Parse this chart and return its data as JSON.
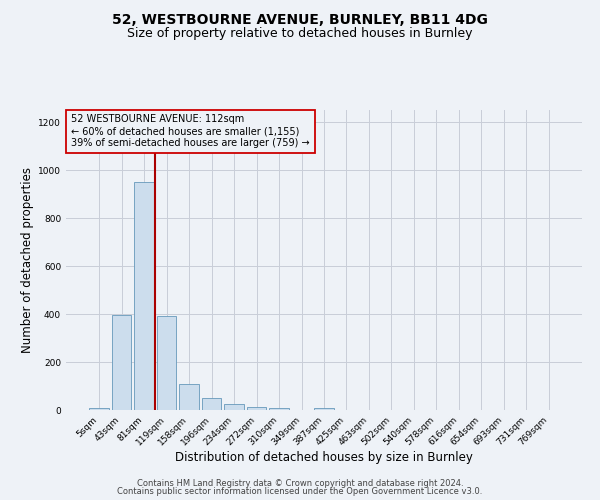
{
  "title_line1": "52, WESTBOURNE AVENUE, BURNLEY, BB11 4DG",
  "title_line2": "Size of property relative to detached houses in Burnley",
  "xlabel": "Distribution of detached houses by size in Burnley",
  "ylabel": "Number of detached properties",
  "footnote1": "Contains HM Land Registry data © Crown copyright and database right 2024.",
  "footnote2": "Contains public sector information licensed under the Open Government Licence v3.0.",
  "bin_labels": [
    "5sqm",
    "43sqm",
    "81sqm",
    "119sqm",
    "158sqm",
    "196sqm",
    "234sqm",
    "272sqm",
    "310sqm",
    "349sqm",
    "387sqm",
    "425sqm",
    "463sqm",
    "502sqm",
    "540sqm",
    "578sqm",
    "616sqm",
    "654sqm",
    "693sqm",
    "731sqm",
    "769sqm"
  ],
  "bar_values": [
    10,
    397,
    950,
    390,
    108,
    50,
    27,
    12,
    8,
    0,
    10,
    0,
    0,
    0,
    0,
    0,
    0,
    0,
    0,
    0,
    0
  ],
  "bar_color": "#ccdded",
  "bar_edgecolor": "#6699bb",
  "vline_x": 2.48,
  "vline_color": "#aa0000",
  "annotation_text": "52 WESTBOURNE AVENUE: 112sqm\n← 60% of detached houses are smaller (1,155)\n39% of semi-detached houses are larger (759) →",
  "annotation_box_edgecolor": "#cc0000",
  "annotation_fontsize": 7.0,
  "ylim": [
    0,
    1250
  ],
  "yticks": [
    0,
    200,
    400,
    600,
    800,
    1000,
    1200
  ],
  "background_color": "#eef2f7",
  "grid_color": "#c8cdd8",
  "title1_fontsize": 10,
  "title2_fontsize": 9,
  "xlabel_fontsize": 8.5,
  "ylabel_fontsize": 8.5,
  "tick_fontsize": 6.5,
  "footnote_fontsize": 6.0
}
